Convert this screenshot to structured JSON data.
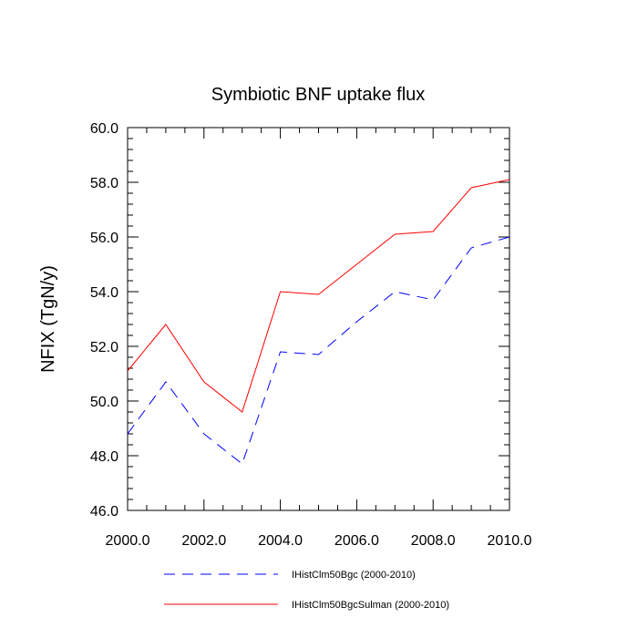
{
  "chart_data": {
    "type": "line",
    "title": "Symbiotic BNF uptake flux",
    "xlabel": "",
    "ylabel": "NFIX  (TgN/y)",
    "xlim": [
      2000,
      2010
    ],
    "ylim": [
      46,
      60
    ],
    "x_ticks": [
      "2000.0",
      "2002.0",
      "2004.0",
      "2006.0",
      "2008.0",
      "2010.0"
    ],
    "y_ticks": [
      "46.0",
      "48.0",
      "50.0",
      "52.0",
      "54.0",
      "56.0",
      "58.0",
      "60.0"
    ],
    "x": [
      2000,
      2001,
      2002,
      2003,
      2004,
      2005,
      2006,
      2007,
      2008,
      2009,
      2010
    ],
    "series": [
      {
        "name": "IHistClm50Bgc (2000-2010)",
        "color": "#0000ff",
        "dash": "dashed",
        "values": [
          48.8,
          50.7,
          48.8,
          47.7,
          51.8,
          51.7,
          52.9,
          54.0,
          53.7,
          55.6,
          56.0
        ]
      },
      {
        "name": "IHistClm50BgcSulman (2000-2010)",
        "color": "#ff0000",
        "dash": "solid",
        "values": [
          51.1,
          52.8,
          50.7,
          49.6,
          54.0,
          53.9,
          55.0,
          56.1,
          56.2,
          57.8,
          58.1
        ]
      }
    ],
    "grid": false,
    "legend_position": "bottom"
  }
}
